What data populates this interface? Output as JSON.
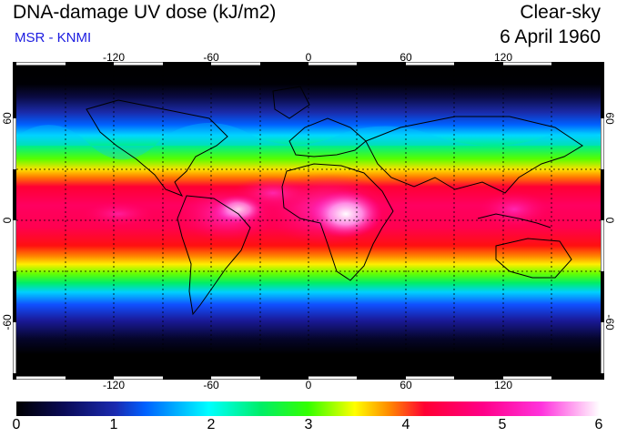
{
  "header": {
    "title": "DNA-damage UV dose (kJ/m2)",
    "source": "MSR - KNMI",
    "condition": "Clear-sky",
    "date": "6 April 1960"
  },
  "map": {
    "lon_ticks": [
      "-120",
      "-60",
      "0",
      "60",
      "120"
    ],
    "lat_ticks": [
      "60",
      "0",
      "-60"
    ],
    "gridlines": "dashed",
    "projection": "equirectangular"
  },
  "colorbar": {
    "ticks": [
      "0",
      "1",
      "2",
      "3",
      "4",
      "5",
      "6"
    ],
    "min": 0,
    "max": 6,
    "colors": [
      "#000000",
      "#1a1a9a",
      "#0060ff",
      "#00ffff",
      "#00ee66",
      "#33ff00",
      "#ffff00",
      "#ff8800",
      "#ff0033",
      "#ff00aa",
      "#ffffff"
    ]
  }
}
